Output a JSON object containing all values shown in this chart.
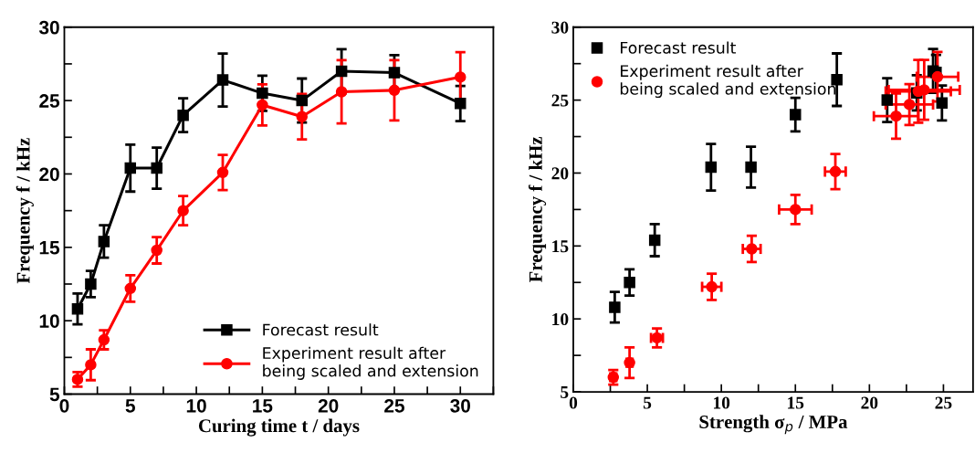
{
  "chart_data": [
    {
      "type": "line",
      "xlabel": "Curing time t / days",
      "ylabel": "Frequency f / kHz",
      "xlim": [
        0,
        32.5
      ],
      "ylim": [
        5,
        30
      ],
      "xticks": [
        0,
        {
          "value": 2.5,
          "label": null
        },
        5,
        {
          "value": 7.5,
          "label": null
        },
        10,
        {
          "value": 12.5,
          "label": null
        },
        15,
        {
          "value": 17.5,
          "label": null
        },
        20,
        {
          "value": 22.5,
          "label": null
        },
        25,
        {
          "value": 27.5,
          "label": null
        },
        30,
        {
          "value": 32.5,
          "label": null
        }
      ],
      "yticks": [
        5,
        {
          "value": 7.5,
          "label": null
        },
        10,
        {
          "value": 12.5,
          "label": null
        },
        15,
        {
          "value": 17.5,
          "label": null
        },
        20,
        {
          "value": 22.5,
          "label": null
        },
        25,
        {
          "value": 27.5,
          "label": null
        },
        30
      ],
      "x": [
        1,
        2,
        3,
        5,
        7,
        9,
        12,
        15,
        18,
        21,
        25,
        30
      ],
      "legend": "lower right",
      "grid": false,
      "line_style": "solid",
      "series": [
        {
          "name": "Forecast result",
          "color": "#000000",
          "marker": "square",
          "values": [
            10.8,
            12.5,
            15.4,
            20.4,
            20.4,
            24.0,
            26.4,
            25.5,
            25.0,
            27.0,
            26.9,
            24.8
          ],
          "errors": [
            1.05,
            0.9,
            1.1,
            1.6,
            1.4,
            1.15,
            1.8,
            1.2,
            1.5,
            1.5,
            1.2,
            1.2
          ]
        },
        {
          "name": "Experiment result after\nbeing scaled and extension",
          "color": "#ff0000",
          "marker": "circle",
          "values": [
            6.0,
            7.0,
            8.7,
            12.2,
            14.8,
            17.5,
            20.1,
            24.7,
            23.9,
            25.6,
            25.7,
            26.6
          ],
          "errors": [
            0.5,
            1.05,
            0.65,
            0.9,
            0.9,
            1.0,
            1.2,
            1.4,
            1.55,
            2.15,
            2.05,
            1.7
          ]
        }
      ]
    },
    {
      "type": "scatter",
      "xlabel": "Strength σ$_{p}$ / MPa",
      "ylabel": "Frequency f / kHz",
      "xlim": [
        0,
        27
      ],
      "ylim": [
        5,
        30
      ],
      "xticks": [
        0,
        {
          "value": 2.5,
          "label": null
        },
        5,
        {
          "value": 7.5,
          "label": null
        },
        10,
        {
          "value": 12.5,
          "label": null
        },
        15,
        {
          "value": 17.5,
          "label": null
        },
        20,
        {
          "value": 22.5,
          "label": null
        },
        25
      ],
      "yticks": [
        5,
        {
          "value": 7.5,
          "label": null
        },
        10,
        {
          "value": 12.5,
          "label": null
        },
        15,
        {
          "value": 17.5,
          "label": null
        },
        20,
        {
          "value": 22.5,
          "label": null
        },
        25,
        {
          "value": 27.5,
          "label": null
        },
        30
      ],
      "legend": "upper left",
      "grid": false,
      "series": [
        {
          "name": "Forecast result",
          "color": "#000000",
          "marker": "square",
          "x": [
            2.8,
            3.8,
            5.5,
            9.3,
            12.0,
            15.0,
            17.8,
            23.2,
            21.2,
            24.3,
            24.5,
            24.9
          ],
          "values": [
            10.8,
            12.5,
            15.4,
            20.4,
            20.4,
            24.0,
            26.4,
            25.5,
            25.0,
            27.0,
            26.9,
            24.8
          ],
          "errors": [
            1.05,
            0.9,
            1.1,
            1.6,
            1.4,
            1.15,
            1.8,
            1.2,
            1.5,
            1.5,
            1.2,
            1.2
          ]
        },
        {
          "name": "Experiment result after\nbeing scaled and extension",
          "color": "#ff0000",
          "marker": "circle",
          "x": [
            2.7,
            3.8,
            5.65,
            9.35,
            12.05,
            15.0,
            17.7,
            22.7,
            21.8,
            23.3,
            23.7,
            24.6
          ],
          "values": [
            6.0,
            7.0,
            8.7,
            12.2,
            14.8,
            17.5,
            20.1,
            24.7,
            23.9,
            25.6,
            25.7,
            26.6
          ],
          "errors": [
            0.5,
            1.05,
            0.65,
            0.9,
            0.9,
            1.0,
            1.2,
            1.4,
            1.55,
            2.15,
            2.05,
            1.7
          ],
          "xerrors": [
            0.2,
            0.2,
            0.4,
            0.65,
            0.6,
            1.1,
            0.7,
            1.6,
            1.5,
            2.2,
            2.4,
            1.4
          ]
        }
      ]
    }
  ]
}
